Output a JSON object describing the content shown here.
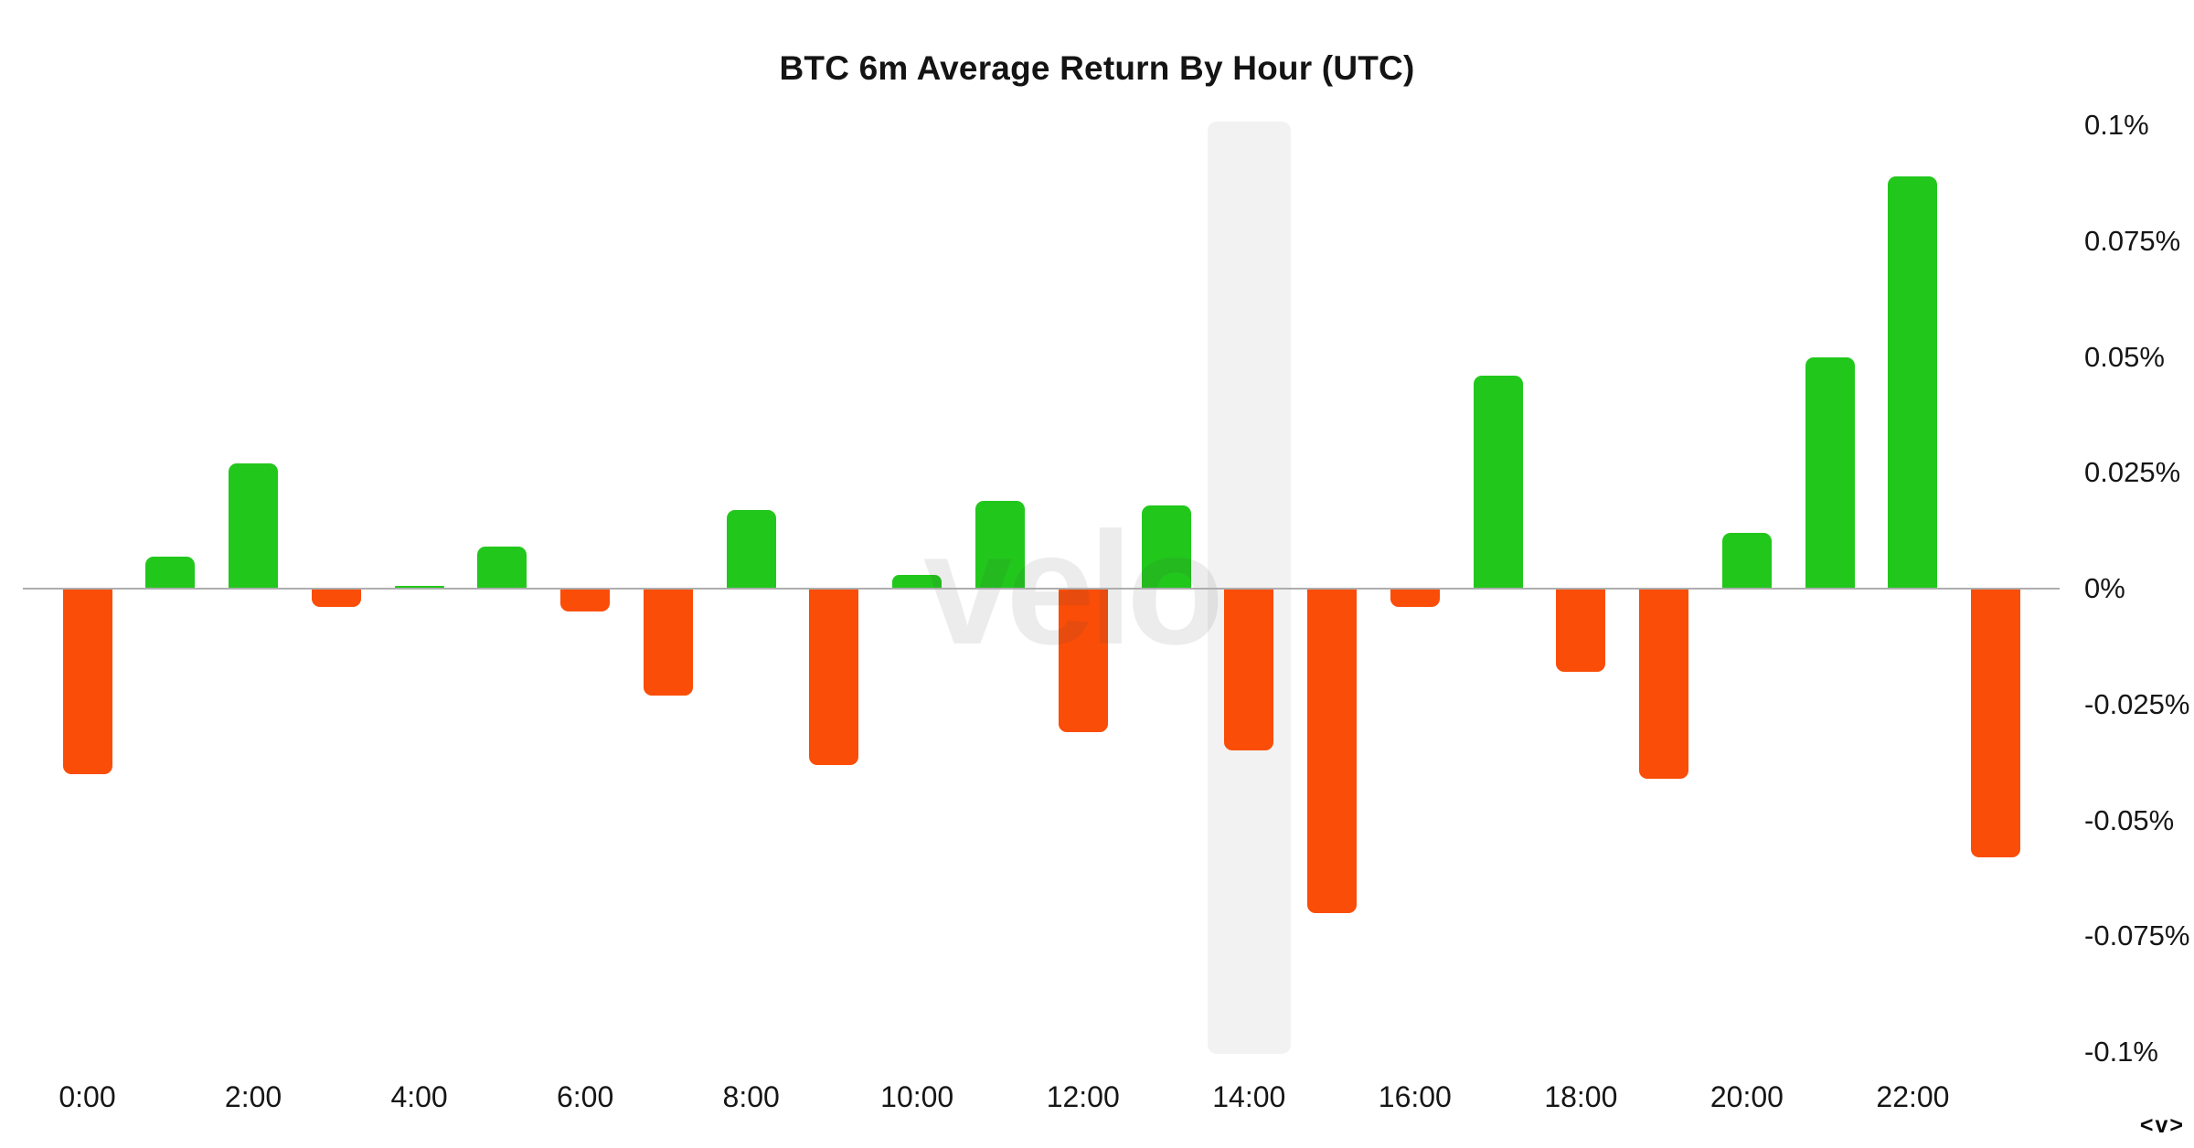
{
  "title": "BTC 6m Average Return By Hour (UTC)",
  "watermark_text": "velo",
  "brand_mark_text": "<v>",
  "colors": {
    "positive_bar": "#22C71C",
    "negative_bar": "#FA4D08",
    "highlight_band": "#F2F2F2",
    "zero_line": "#ADADAD",
    "text": "#161616",
    "background": "#FFFFFF"
  },
  "chart_data": {
    "type": "bar",
    "title": "BTC 6m Average Return By Hour (UTC)",
    "xlabel": "",
    "ylabel": "",
    "unit": "%",
    "ylim": [
      -0.1,
      0.1
    ],
    "grid": "zero-line-only",
    "legend_position": "none",
    "categories": [
      "0:00",
      "1:00",
      "2:00",
      "3:00",
      "4:00",
      "5:00",
      "6:00",
      "7:00",
      "8:00",
      "9:00",
      "10:00",
      "11:00",
      "12:00",
      "13:00",
      "14:00",
      "15:00",
      "16:00",
      "17:00",
      "18:00",
      "19:00",
      "20:00",
      "21:00",
      "22:00",
      "23:00"
    ],
    "values": [
      -0.04,
      0.007,
      0.027,
      -0.004,
      0.0005,
      0.009,
      -0.005,
      -0.023,
      0.017,
      -0.038,
      0.003,
      0.019,
      -0.031,
      0.018,
      -0.035,
      -0.07,
      -0.004,
      0.046,
      -0.018,
      -0.041,
      0.012,
      0.05,
      0.089,
      -0.058
    ],
    "highlighted_category": "14:00",
    "x_tick_labels": [
      "0:00",
      "2:00",
      "4:00",
      "6:00",
      "8:00",
      "10:00",
      "12:00",
      "14:00",
      "16:00",
      "18:00",
      "20:00",
      "22:00"
    ],
    "y_ticks": [
      {
        "label": "0.1%",
        "value": 0.1
      },
      {
        "label": "0.075%",
        "value": 0.075
      },
      {
        "label": "0.05%",
        "value": 0.05
      },
      {
        "label": "0.025%",
        "value": 0.025
      },
      {
        "label": "0%",
        "value": 0
      },
      {
        "label": "-0.025%",
        "value": -0.025
      },
      {
        "label": "-0.05%",
        "value": -0.05
      },
      {
        "label": "-0.075%",
        "value": -0.075
      },
      {
        "label": "-0.1%",
        "value": -0.1
      }
    ]
  }
}
